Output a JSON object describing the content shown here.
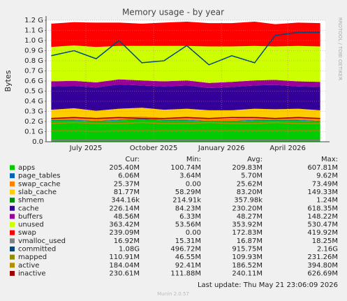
{
  "chart_data": {
    "type": "stacked-area",
    "title": "Memory usage - by year",
    "y_label": "Bytes",
    "side_label": "RRDTOOL / TOBI OETIKER",
    "last_update": "Last update: Thu May 21 23:06:09 2026",
    "footer": "Munin 2.0.57",
    "grid": true,
    "x": [
      "2025-05-15",
      "2025-06-15",
      "2025-07-15",
      "2025-08-15",
      "2025-09-15",
      "2025-10-15",
      "2025-11-15",
      "2025-12-15",
      "2026-01-15",
      "2026-02-15",
      "2026-03-15",
      "2026-04-15",
      "2026-05-15"
    ],
    "xlim": [
      "2025-05-08",
      "2026-05-22"
    ],
    "xticks": [
      {
        "value": "2025-07-01",
        "label": "July 2025"
      },
      {
        "value": "2025-10-01",
        "label": "October 2025"
      },
      {
        "value": "2026-01-01",
        "label": "January 2026"
      },
      {
        "value": "2026-04-01",
        "label": "April 2026"
      }
    ],
    "ylim": [
      0,
      1.2
    ],
    "yticks": [
      {
        "value": 0,
        "label": "0.0"
      },
      {
        "value": 0.1,
        "label": "0.1 G"
      },
      {
        "value": 0.2,
        "label": "0.2 G"
      },
      {
        "value": 0.3,
        "label": "0.3 G"
      },
      {
        "value": 0.4,
        "label": "0.4 G"
      },
      {
        "value": 0.5,
        "label": "0.5 G"
      },
      {
        "value": 0.6,
        "label": "0.6 G"
      },
      {
        "value": 0.7,
        "label": "0.7 G"
      },
      {
        "value": 0.8,
        "label": "0.8 G"
      },
      {
        "value": 0.9,
        "label": "0.9 G"
      },
      {
        "value": 1.0,
        "label": "1.0 G"
      },
      {
        "value": 1.1,
        "label": "1.1 G"
      },
      {
        "value": 1.2,
        "label": "1.2 G"
      }
    ],
    "stats_headers": [
      "Cur:",
      "Min:",
      "Avg:",
      "Max:"
    ],
    "series": [
      {
        "name": "apps",
        "color": "#00cc00",
        "kind": "area",
        "values": [
          0.21,
          0.21,
          0.2,
          0.21,
          0.22,
          0.21,
          0.21,
          0.2,
          0.2,
          0.21,
          0.21,
          0.21,
          0.2
        ],
        "stats": [
          "205.40M",
          "100.74M",
          "209.83M",
          "607.81M"
        ]
      },
      {
        "name": "page_tables",
        "color": "#0066b3",
        "kind": "area",
        "values": [
          0.006,
          0.006,
          0.006,
          0.006,
          0.006,
          0.006,
          0.006,
          0.006,
          0.006,
          0.006,
          0.006,
          0.006,
          0.006
        ],
        "stats": [
          "6.06M",
          "3.64M",
          "5.70M",
          "9.62M"
        ]
      },
      {
        "name": "swap_cache",
        "color": "#ff8000",
        "kind": "area",
        "values": [
          0.02,
          0.03,
          0.02,
          0.03,
          0.025,
          0.02,
          0.03,
          0.02,
          0.025,
          0.03,
          0.02,
          0.03,
          0.025
        ],
        "stats": [
          "25.37M",
          "0.00",
          "25.62M",
          "73.49M"
        ]
      },
      {
        "name": "slab_cache",
        "color": "#ffcc00",
        "kind": "area",
        "values": [
          0.08,
          0.085,
          0.08,
          0.08,
          0.085,
          0.08,
          0.08,
          0.085,
          0.08,
          0.08,
          0.085,
          0.08,
          0.08
        ],
        "stats": [
          "81.77M",
          "58.29M",
          "83.20M",
          "149.33M"
        ]
      },
      {
        "name": "shmem",
        "color": "#008f00",
        "kind": "area",
        "values": [
          0.0003,
          0.0003,
          0.0003,
          0.0003,
          0.0003,
          0.0003,
          0.0003,
          0.0003,
          0.0003,
          0.0003,
          0.0003,
          0.0003,
          0.0003
        ],
        "stats": [
          "344.16k",
          "214.91k",
          "357.98k",
          "1.24M"
        ]
      },
      {
        "name": "cache",
        "color": "#330099",
        "kind": "area",
        "values": [
          0.23,
          0.22,
          0.23,
          0.24,
          0.22,
          0.23,
          0.23,
          0.22,
          0.23,
          0.23,
          0.24,
          0.22,
          0.23
        ],
        "stats": [
          "226.14M",
          "84.23M",
          "230.20M",
          "618.35M"
        ]
      },
      {
        "name": "buffers",
        "color": "#990099",
        "kind": "area",
        "values": [
          0.05,
          0.05,
          0.05,
          0.05,
          0.05,
          0.05,
          0.05,
          0.05,
          0.05,
          0.05,
          0.05,
          0.05,
          0.05
        ],
        "stats": [
          "48.56M",
          "6.33M",
          "48.27M",
          "148.22M"
        ]
      },
      {
        "name": "unused",
        "color": "#ccff00",
        "kind": "area",
        "values": [
          0.34,
          0.35,
          0.35,
          0.33,
          0.34,
          0.35,
          0.34,
          0.36,
          0.35,
          0.34,
          0.33,
          0.35,
          0.35
        ],
        "stats": [
          "363.42M",
          "53.56M",
          "353.92M",
          "530.47M"
        ]
      },
      {
        "name": "swap",
        "color": "#ff0000",
        "kind": "area",
        "values": [
          0.23,
          0.23,
          0.24,
          0.23,
          0.22,
          0.23,
          0.24,
          0.23,
          0.23,
          0.24,
          0.22,
          0.23,
          0.23
        ],
        "stats": [
          "239.09M",
          "0.00",
          "172.83M",
          "419.92M"
        ]
      },
      {
        "name": "vmalloc_used",
        "color": "#808080",
        "kind": "line",
        "values": [
          0.017,
          0.017,
          0.017,
          0.017,
          0.017,
          0.017,
          0.017,
          0.017,
          0.017,
          0.017,
          0.017,
          0.017,
          0.017
        ],
        "stats": [
          "16.92M",
          "15.31M",
          "16.87M",
          "18.25M"
        ]
      },
      {
        "name": "committed",
        "color": "#00487d",
        "kind": "line",
        "values": [
          0.85,
          0.9,
          0.82,
          1.0,
          0.78,
          0.8,
          0.95,
          0.76,
          0.85,
          0.78,
          1.05,
          1.08,
          1.08
        ],
        "stats": [
          "1.08G",
          "496.72M",
          "915.75M",
          "2.16G"
        ]
      },
      {
        "name": "mapped",
        "color": "#8f8f00",
        "kind": "line",
        "values": [
          0.11,
          0.11,
          0.105,
          0.11,
          0.11,
          0.11,
          0.11,
          0.11,
          0.11,
          0.11,
          0.11,
          0.11,
          0.11
        ],
        "stats": [
          "110.91M",
          "46.55M",
          "109.93M",
          "231.26M"
        ]
      },
      {
        "name": "active",
        "color": "#b38f00",
        "kind": "line",
        "values": [
          0.18,
          0.19,
          0.18,
          0.18,
          0.19,
          0.18,
          0.18,
          0.19,
          0.18,
          0.18,
          0.19,
          0.18,
          0.18
        ],
        "stats": [
          "184.04M",
          "92.41M",
          "186.52M",
          "394.80M"
        ]
      },
      {
        "name": "inactive",
        "color": "#990000",
        "kind": "line",
        "values": [
          0.23,
          0.24,
          0.23,
          0.24,
          0.23,
          0.23,
          0.24,
          0.23,
          0.24,
          0.24,
          0.23,
          0.24,
          0.23
        ],
        "stats": [
          "230.61M",
          "111.88M",
          "240.11M",
          "626.69M"
        ]
      }
    ]
  }
}
